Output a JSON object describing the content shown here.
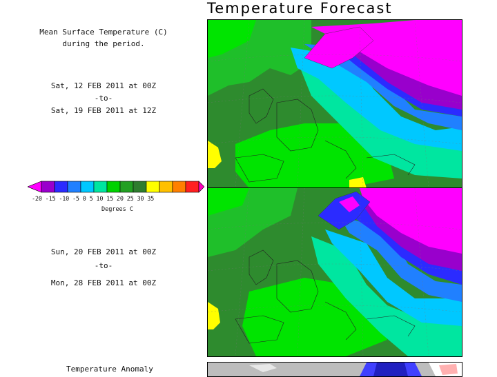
{
  "title": "Temperature Forecast",
  "description": {
    "line1": "Mean Surface Temperature (C)",
    "line2": "during the period."
  },
  "period1": {
    "start": "Sat, 12 FEB 2011  at 00Z",
    "sep": "-to-",
    "end": "Sat, 19 FEB 2011  at 12Z"
  },
  "period2": {
    "start": "Sun, 20 FEB 2011  at 00Z",
    "sep": "-to-",
    "end": "Mon, 28 FEB 2011  at 00Z"
  },
  "legend": {
    "ticks": "-20 -15 -10 -5   0   5  10  15  20  25  30  35",
    "unit": "Degrees C",
    "colors": [
      "#ff00ff",
      "#9900cc",
      "#2b2bff",
      "#2080ff",
      "#00c8ff",
      "#00e6a0",
      "#00d200",
      "#22a022",
      "#2e7d2e",
      "#ffff00",
      "#ffc000",
      "#ff8000",
      "#ff2020",
      "#ff00c0"
    ]
  },
  "anomaly": {
    "label": "Temperature Anomaly"
  },
  "map_colors": {
    "dark_green": "#2e8b2e",
    "green": "#1fbf2a",
    "bright_green": "#00e400",
    "teal": "#00e6a0",
    "cyan": "#00c8ff",
    "light_blue": "#2080ff",
    "blue": "#2b2bff",
    "purple": "#9900cc",
    "magenta": "#ff00ff",
    "yellow": "#ffff00"
  }
}
